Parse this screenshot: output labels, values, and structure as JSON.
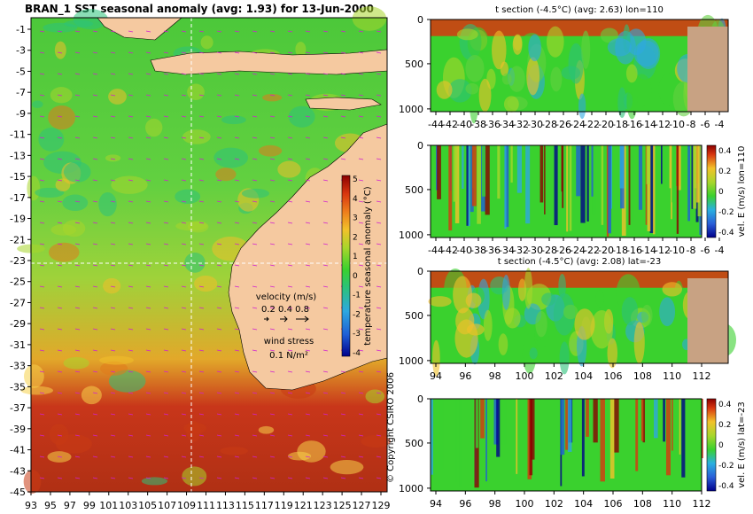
{
  "chart_data": [
    {
      "type": "heatmap",
      "title": "BRAN_1 SST seasonal anomaly (avg: 1.93) for 13-Jun-2000",
      "x_ticks": [
        "93",
        "95",
        "97",
        "99",
        "101",
        "103",
        "105",
        "107",
        "109",
        "111",
        "113",
        "115",
        "117",
        "119",
        "121",
        "123",
        "125",
        "127",
        "129"
      ],
      "y_ticks": [
        "-1",
        "-3",
        "-5",
        "-7",
        "-9",
        "-11",
        "-13",
        "-15",
        "-17",
        "-19",
        "-21",
        "-23",
        "-25",
        "-27",
        "-29",
        "-31",
        "-33",
        "-35",
        "-37",
        "-39",
        "-41",
        "-43",
        "-45"
      ],
      "colorbar": {
        "label": "temperature seasonal anomaly (°C)",
        "ticks": [
          "5",
          "4",
          "3",
          "2",
          "1",
          "0",
          "-1",
          "-2",
          "-3",
          "-4"
        ],
        "range": [
          -4,
          5
        ]
      },
      "velocity_legend": {
        "title": "velocity (m/s)",
        "values": "0.2 0.4 0.8"
      },
      "wind_legend": {
        "title": "wind stress",
        "value": "0.1 N/m²"
      },
      "copyright": "© Copyright CSIRO 2006"
    },
    {
      "type": "heatmap",
      "title": "t section (-4.5°C) (avg: 2.63) lon=110",
      "x_ticks": [
        "-44",
        "-42",
        "-40",
        "-38",
        "-36",
        "-34",
        "-32",
        "-30",
        "-28",
        "-26",
        "-24",
        "-22",
        "-20",
        "-18",
        "-16",
        "-14",
        "-12",
        "-10",
        "-8",
        "-6",
        "-4"
      ],
      "y_ticks": [
        "0",
        "500",
        "1000"
      ]
    },
    {
      "type": "heatmap",
      "title": "",
      "x_ticks": [
        "-44",
        "-42",
        "-40",
        "-38",
        "-36",
        "-34",
        "-32",
        "-30",
        "-28",
        "-26",
        "-24",
        "-22",
        "-20",
        "-18",
        "-16",
        "-14",
        "-12",
        "-10",
        "-8",
        "-6",
        "-4"
      ],
      "y_ticks": [
        "0",
        "500",
        "1000"
      ],
      "colorbar": {
        "label": "vel. E (m/s) lon=110",
        "ticks": [
          "0.4",
          "0.2",
          "0",
          "-0.2",
          "-0.4"
        ],
        "range": [
          -0.4,
          0.4
        ]
      }
    },
    {
      "type": "heatmap",
      "title": "t section (-4.5°C) (avg: 2.08) lat=-23",
      "x_ticks": [
        "94",
        "96",
        "98",
        "100",
        "102",
        "104",
        "106",
        "108",
        "110",
        "112"
      ],
      "y_ticks": [
        "0",
        "500",
        "1000"
      ]
    },
    {
      "type": "heatmap",
      "title": "",
      "x_ticks": [
        "94",
        "96",
        "98",
        "100",
        "102",
        "104",
        "106",
        "108",
        "110",
        "112"
      ],
      "y_ticks": [
        "0",
        "500",
        "1000"
      ],
      "colorbar": {
        "label": "vel. E (m/s) lat=-23",
        "ticks": [
          "0.4",
          "0.2",
          "0",
          "-0.2",
          "-0.4"
        ],
        "range": [
          -0.4,
          0.4
        ]
      }
    }
  ]
}
